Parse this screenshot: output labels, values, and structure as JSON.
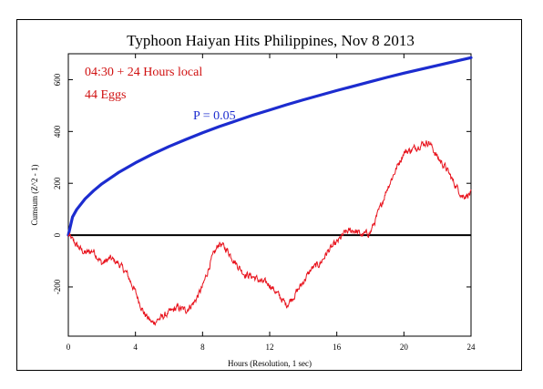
{
  "chart_data": {
    "type": "line",
    "title": "Typhoon Haiyan Hits Philippines, Nov 8 2013",
    "annotations": {
      "time": "04:30 + 24 Hours local",
      "eggs": "44 Eggs",
      "probability": "P = 0.05"
    },
    "xlabel": "Hours (Resolution, 1 sec)",
    "ylabel": "Cumsum (Z^2 - 1)",
    "xlim": [
      0,
      24
    ],
    "ylim": [
      -390,
      700
    ],
    "x_ticks": [
      0,
      4,
      8,
      12,
      16,
      20,
      24
    ],
    "y_ticks": [
      -200,
      0,
      200,
      400,
      600
    ],
    "colors": {
      "cumsum": "#e8141e",
      "probability_envelope": "#1c2ccf",
      "baseline": "#000000"
    },
    "series": [
      {
        "x": [
          0,
          0.5,
          1.0,
          1.5,
          2.0,
          2.5,
          3.0,
          3.5,
          4.0,
          4.5,
          5.0,
          5.5,
          6.0,
          6.5,
          7.0,
          7.5,
          8.0,
          8.5,
          9.0,
          9.5,
          10.0,
          10.5,
          11.0,
          11.5,
          12.0,
          12.5,
          13.0,
          13.5,
          14.0,
          14.5,
          15.0,
          15.5,
          16.0,
          16.5,
          17.0,
          17.5,
          18.0,
          18.5,
          19.0,
          19.5,
          20.0,
          20.5,
          21.0,
          21.5,
          22.0,
          22.5,
          23.0,
          23.5,
          24.0
        ],
        "values": [
          0,
          -40,
          -70,
          -60,
          -110,
          -90,
          -110,
          -150,
          -220,
          -300,
          -340,
          -320,
          -300,
          -280,
          -290,
          -260,
          -200,
          -100,
          -30,
          -60,
          -110,
          -150,
          -160,
          -180,
          -190,
          -230,
          -270,
          -230,
          -180,
          -130,
          -110,
          -60,
          -30,
          10,
          20,
          0,
          10,
          90,
          180,
          250,
          320,
          330,
          350,
          360,
          300,
          260,
          200,
          150,
          160
        ]
      },
      {
        "x": [
          0,
          0.25,
          0.5,
          1,
          1.5,
          2,
          3,
          4,
          5,
          6,
          7,
          8,
          9,
          10,
          11,
          12,
          13,
          14,
          15,
          16,
          17,
          18,
          19,
          20,
          21,
          22,
          23,
          24
        ],
        "values": [
          0,
          70,
          99,
          140,
          171,
          198,
          242,
          279,
          312,
          342,
          369,
          395,
          419,
          441,
          463,
          483,
          503,
          522,
          540,
          558,
          575,
          592,
          609,
          625,
          640,
          655,
          670,
          685
        ]
      }
    ]
  }
}
